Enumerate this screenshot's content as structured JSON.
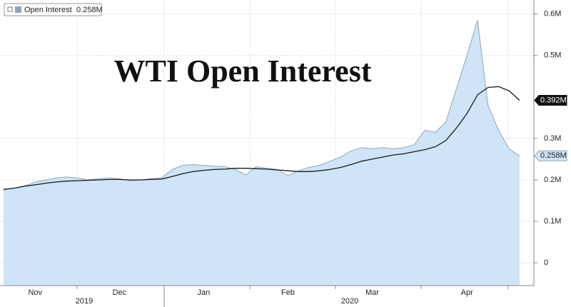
{
  "chart_data": {
    "type": "area",
    "title": "WTI Open Interest",
    "categories": [
      null,
      null,
      null,
      "Nov",
      null,
      null,
      null,
      null,
      null,
      null,
      null,
      "Dec",
      null,
      null,
      null,
      null,
      null,
      null,
      null,
      "Jan",
      null,
      null,
      null,
      null,
      null,
      null,
      null,
      "Feb",
      null,
      null,
      null,
      null,
      null,
      null,
      null,
      "Mar",
      null,
      null,
      null,
      null,
      null,
      null,
      null,
      null,
      "Apr",
      null,
      null,
      null,
      null,
      null
    ],
    "year_labels": [
      "2019",
      "2020"
    ],
    "series": [
      {
        "name": "Open Interest",
        "color": "#cfe4f7",
        "line_color": "#8ea7bd",
        "last_label": "0.258M",
        "values": [
          0.178,
          0.18,
          0.185,
          0.195,
          0.2,
          0.205,
          0.207,
          0.205,
          0.2,
          0.203,
          0.205,
          0.203,
          0.198,
          0.2,
          0.203,
          0.205,
          0.225,
          0.235,
          0.237,
          0.235,
          0.233,
          0.232,
          0.225,
          0.212,
          0.232,
          0.228,
          0.225,
          0.21,
          0.222,
          0.23,
          0.235,
          0.245,
          0.255,
          0.27,
          0.278,
          0.275,
          0.278,
          0.275,
          0.278,
          0.285,
          0.32,
          0.315,
          0.34,
          0.42,
          0.5,
          0.585,
          0.38,
          0.32,
          0.275,
          0.258
        ]
      },
      {
        "color": "#1a1a1a",
        "last_label": "0.392M",
        "values": [
          0.177,
          0.18,
          0.185,
          0.188,
          0.192,
          0.195,
          0.197,
          0.198,
          0.199,
          0.2,
          0.201,
          0.201,
          0.2,
          0.2,
          0.201,
          0.202,
          0.208,
          0.215,
          0.22,
          0.223,
          0.225,
          0.226,
          0.228,
          0.228,
          0.227,
          0.226,
          0.224,
          0.222,
          0.22,
          0.22,
          0.222,
          0.225,
          0.23,
          0.237,
          0.245,
          0.25,
          0.255,
          0.26,
          0.263,
          0.268,
          0.273,
          0.28,
          0.295,
          0.325,
          0.36,
          0.405,
          0.423,
          0.425,
          0.415,
          0.392
        ]
      }
    ],
    "ylim": [
      -0.055,
      0.634
    ],
    "yticks": [
      0,
      {
        "value": 0.1,
        "label": "0.1M"
      },
      {
        "value": 0.2,
        "label": "0.2M"
      },
      {
        "value": 0.3,
        "label": "0.3M"
      },
      {
        "value": 0.5,
        "label": "0.5M"
      },
      {
        "value": 0.6,
        "label": "0.6M"
      }
    ],
    "grid": true
  }
}
